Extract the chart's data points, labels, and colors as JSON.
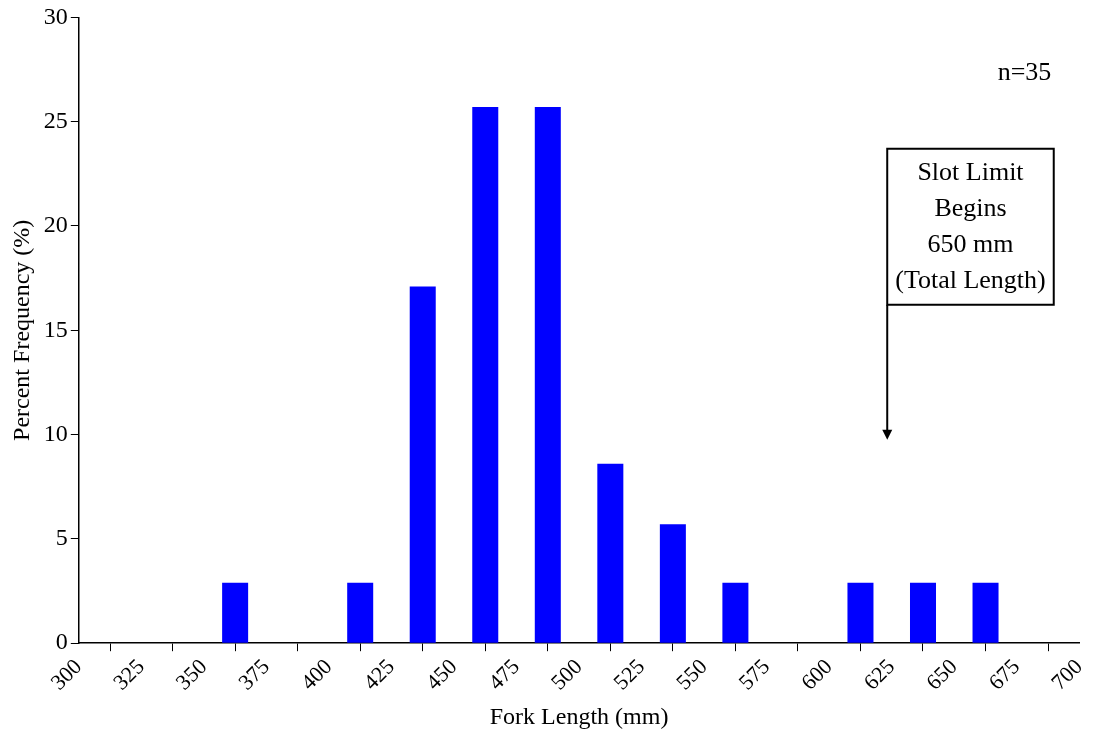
{
  "chart_data": {
    "type": "histogram",
    "xlabel": "Fork Length (mm)",
    "ylabel": "Percent Frequency (%)",
    "bins": [
      300,
      325,
      350,
      375,
      400,
      425,
      450,
      475,
      500,
      525,
      550,
      575,
      600,
      625,
      650,
      675,
      700
    ],
    "values": [
      0,
      0,
      2.9,
      0,
      2.9,
      17.1,
      25.7,
      25.7,
      8.6,
      5.7,
      2.9,
      0,
      2.9,
      2.9,
      2.9,
      0
    ],
    "color": "#0000ff",
    "xlim": [
      300,
      700
    ],
    "xticks": [
      300,
      325,
      350,
      375,
      400,
      425,
      450,
      475,
      500,
      525,
      550,
      575,
      600,
      625,
      650,
      675,
      700
    ],
    "ylim": [
      0,
      30
    ],
    "yticks": [
      0,
      5,
      10,
      15,
      20,
      25,
      30
    ],
    "grid": false,
    "legend": false,
    "annotations": [
      "n=35",
      "Slot Limit\nBegins\n650 mm\n(Total Length)"
    ]
  }
}
